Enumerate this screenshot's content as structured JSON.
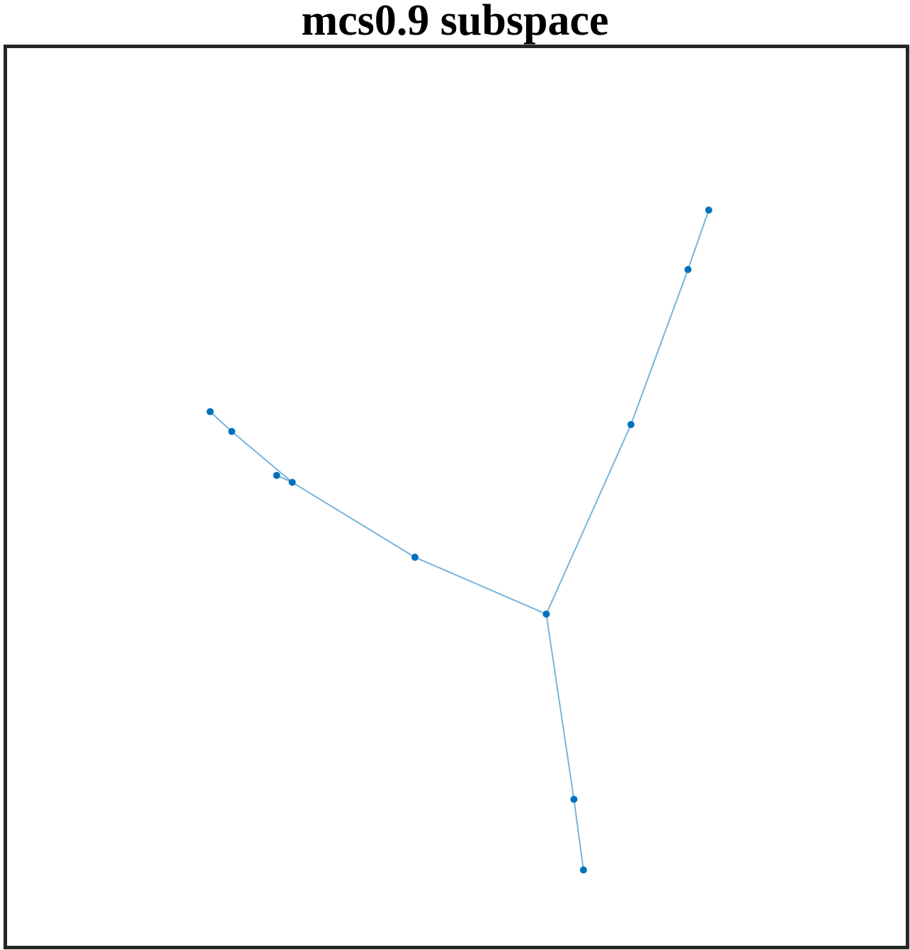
{
  "title": "mcs0.9 subspace",
  "colors": {
    "node": "#0072BD",
    "edge": "#77B4DD",
    "frame": "#262626",
    "title": "#000000"
  },
  "graph": {
    "nodes": [
      {
        "id": "n1",
        "x": -5.27,
        "y": 3.84
      },
      {
        "id": "n2",
        "x": -5.02,
        "y": 3.61
      },
      {
        "id": "n3",
        "x": -4.5,
        "y": 3.1
      },
      {
        "id": "n4",
        "x": -4.32,
        "y": 3.02
      },
      {
        "id": "n5",
        "x": -2.9,
        "y": 2.15
      },
      {
        "id": "n6",
        "x": -1.38,
        "y": 1.49
      },
      {
        "id": "n7",
        "x": -0.4,
        "y": 3.69
      },
      {
        "id": "n8",
        "x": 0.26,
        "y": 5.49
      },
      {
        "id": "n9",
        "x": 0.5,
        "y": 6.18
      },
      {
        "id": "n10",
        "x": -1.06,
        "y": -0.66
      },
      {
        "id": "n11",
        "x": -0.95,
        "y": -1.48
      }
    ],
    "edges": [
      [
        "n1",
        "n2"
      ],
      [
        "n2",
        "n4"
      ],
      [
        "n3",
        "n4"
      ],
      [
        "n4",
        "n5"
      ],
      [
        "n5",
        "n6"
      ],
      [
        "n6",
        "n7"
      ],
      [
        "n7",
        "n8"
      ],
      [
        "n8",
        "n9"
      ],
      [
        "n6",
        "n10"
      ],
      [
        "n10",
        "n11"
      ]
    ],
    "xlim": [
      -7.62,
      2.78
    ],
    "ylim": [
      -2.36,
      8.06
    ]
  }
}
